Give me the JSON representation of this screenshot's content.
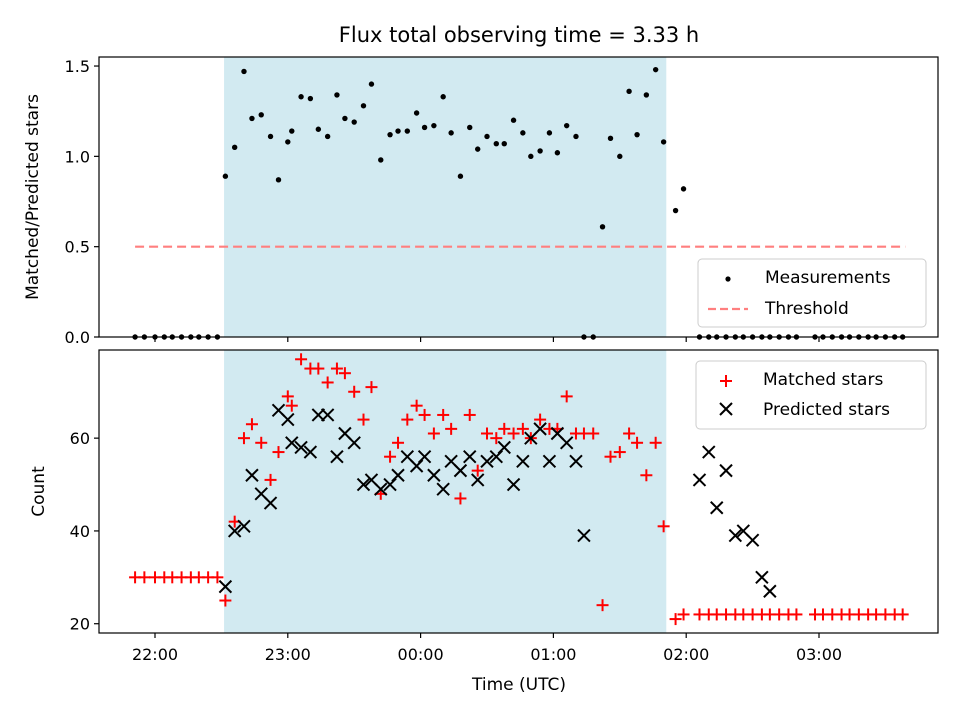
{
  "figure": {
    "title": "Flux total observing time = 3.33 h",
    "xlabel": "Time (UTC)",
    "x_ticks": [
      "22:00",
      "23:00",
      "00:00",
      "01:00",
      "02:00",
      "03:00"
    ],
    "x_ticks_hours": [
      0,
      1,
      2,
      3,
      4,
      5
    ],
    "shaded_range_hours": [
      0.52,
      3.85
    ],
    "shade_color": "#add8e6"
  },
  "chart_data": [
    {
      "type": "scatter",
      "panel": "top",
      "ylabel": "Matched/Predicted stars",
      "ylim": [
        0,
        1.55
      ],
      "y_ticks": [
        "0.0",
        "0.5",
        "1.0",
        "1.5"
      ],
      "grid": false,
      "legend_position": "lower-right",
      "series": [
        {
          "name": "Measurements",
          "marker": "dot",
          "color": "#000000",
          "x_hours": [
            -0.15,
            -0.08,
            0.0,
            0.07,
            0.13,
            0.2,
            0.27,
            0.33,
            0.4,
            0.47,
            0.53,
            0.6,
            0.67,
            0.73,
            0.8,
            0.87,
            0.93,
            1.0,
            1.03,
            1.1,
            1.17,
            1.23,
            1.3,
            1.37,
            1.43,
            1.5,
            1.57,
            1.63,
            1.7,
            1.77,
            1.83,
            1.9,
            1.97,
            2.03,
            2.1,
            2.17,
            2.23,
            2.3,
            2.37,
            2.43,
            2.5,
            2.57,
            2.63,
            2.7,
            2.77,
            2.83,
            2.9,
            2.97,
            3.03,
            3.1,
            3.17,
            3.23,
            3.3,
            3.37,
            3.43,
            3.5,
            3.57,
            3.63,
            3.7,
            3.77,
            3.83,
            3.92,
            3.98,
            4.1,
            4.17,
            4.23,
            4.3,
            4.37,
            4.43,
            4.5,
            4.57,
            4.63,
            4.7,
            4.77,
            4.83,
            4.97,
            5.03,
            5.1,
            5.17,
            5.23,
            5.3,
            5.37,
            5.43,
            5.5,
            5.57,
            5.63
          ],
          "y": [
            0,
            0,
            0,
            0,
            0,
            0,
            0,
            0,
            0,
            0,
            0.89,
            1.05,
            1.47,
            1.21,
            1.23,
            1.11,
            0.87,
            1.08,
            1.14,
            1.33,
            1.32,
            1.15,
            1.11,
            1.34,
            1.21,
            1.19,
            1.28,
            1.4,
            0.98,
            1.12,
            1.14,
            1.14,
            1.24,
            1.16,
            1.17,
            1.33,
            1.13,
            0.89,
            1.16,
            1.04,
            1.11,
            1.07,
            1.07,
            1.2,
            1.13,
            1.0,
            1.03,
            1.13,
            1.02,
            1.17,
            1.11,
            0,
            0,
            0.61,
            1.1,
            1.0,
            1.36,
            1.12,
            1.34,
            1.48,
            1.08,
            0.7,
            0.82,
            0,
            0,
            0,
            0,
            0,
            0,
            0,
            0,
            0,
            0,
            0,
            0,
            0,
            0,
            0,
            0,
            0,
            0,
            0,
            0,
            0,
            0,
            0
          ]
        },
        {
          "name": "Threshold",
          "style": "dashed",
          "color": "#ff7f7f",
          "x_hours": [
            -0.15,
            5.65
          ],
          "y": [
            0.5,
            0.5
          ]
        }
      ]
    },
    {
      "type": "scatter",
      "panel": "bottom",
      "ylabel": "Count",
      "ylim": [
        18,
        79
      ],
      "y_ticks": [
        "20",
        "40",
        "60"
      ],
      "grid": false,
      "legend_position": "upper-right",
      "series": [
        {
          "name": "Matched stars",
          "marker": "plus",
          "color": "#ff0000",
          "x_hours": [
            -0.15,
            -0.08,
            0.0,
            0.07,
            0.13,
            0.2,
            0.27,
            0.33,
            0.4,
            0.47,
            0.53,
            0.6,
            0.67,
            0.73,
            0.8,
            0.87,
            0.93,
            1.0,
            1.03,
            1.1,
            1.17,
            1.23,
            1.3,
            1.37,
            1.43,
            1.5,
            1.57,
            1.63,
            1.7,
            1.77,
            1.83,
            1.9,
            1.97,
            2.03,
            2.1,
            2.17,
            2.23,
            2.3,
            2.37,
            2.43,
            2.5,
            2.57,
            2.63,
            2.7,
            2.77,
            2.83,
            2.9,
            2.97,
            3.03,
            3.1,
            3.17,
            3.23,
            3.3,
            3.37,
            3.43,
            3.5,
            3.57,
            3.63,
            3.7,
            3.77,
            3.83,
            3.92,
            3.98,
            4.1,
            4.17,
            4.23,
            4.3,
            4.37,
            4.43,
            4.5,
            4.57,
            4.63,
            4.7,
            4.77,
            4.83,
            4.97,
            5.03,
            5.1,
            5.17,
            5.23,
            5.3,
            5.37,
            5.43,
            5.5,
            5.57,
            5.63
          ],
          "y": [
            30,
            30,
            30,
            30,
            30,
            30,
            30,
            30,
            30,
            30,
            25,
            42,
            60,
            63,
            59,
            51,
            57,
            69,
            67,
            77,
            75,
            75,
            72,
            75,
            74,
            70,
            64,
            71,
            48,
            56,
            59,
            64,
            67,
            65,
            61,
            65,
            62,
            47,
            65,
            53,
            61,
            60,
            62,
            61,
            62,
            60,
            64,
            62,
            62,
            69,
            61,
            61,
            61,
            24,
            56,
            57,
            61,
            59,
            52,
            59,
            41,
            21,
            22,
            22,
            22,
            22,
            22,
            22,
            22,
            22,
            22,
            22,
            22,
            22,
            22,
            22,
            22,
            22,
            22,
            22,
            22,
            22,
            22,
            22,
            22,
            22
          ]
        },
        {
          "name": "Predicted stars",
          "marker": "x",
          "color": "#000000",
          "x_hours": [
            0.53,
            0.6,
            0.67,
            0.73,
            0.8,
            0.87,
            0.93,
            1.0,
            1.03,
            1.1,
            1.17,
            1.23,
            1.3,
            1.37,
            1.43,
            1.5,
            1.57,
            1.63,
            1.7,
            1.77,
            1.83,
            1.9,
            1.97,
            2.03,
            2.1,
            2.17,
            2.23,
            2.3,
            2.37,
            2.43,
            2.5,
            2.57,
            2.63,
            2.7,
            2.77,
            2.83,
            2.9,
            2.97,
            3.03,
            3.1,
            3.17,
            3.23,
            4.1,
            4.17,
            4.23,
            4.3,
            4.37,
            4.43,
            4.5,
            4.57,
            4.63,
            4.7,
            4.77
          ],
          "y": [
            28,
            40,
            41,
            52,
            48,
            46,
            66,
            64,
            59,
            58,
            57,
            65,
            65,
            56,
            61,
            59,
            50,
            51,
            49,
            50,
            52,
            56,
            54,
            56,
            52,
            49,
            55,
            53,
            56,
            51,
            55,
            56,
            58,
            50,
            55,
            60,
            62,
            55,
            61,
            59,
            55,
            39,
            51,
            57,
            45,
            53,
            39,
            40,
            38,
            30,
            27,
            null,
            null
          ]
        }
      ]
    }
  ],
  "legends": {
    "top": [
      "Measurements",
      "Threshold"
    ],
    "bottom": [
      "Matched stars",
      "Predicted stars"
    ]
  }
}
